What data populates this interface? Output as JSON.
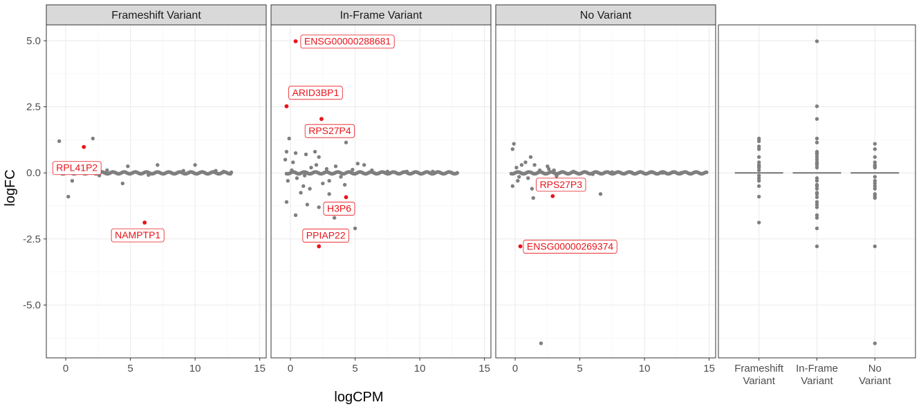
{
  "chart_data": [
    {
      "type": "scatter",
      "panel": "Frameshift Variant",
      "xlabel": "logCPM",
      "ylabel": "logFC",
      "xlim": [
        -1.5,
        15.5
      ],
      "ylim": [
        -7,
        5.6
      ],
      "xticks": [
        "0",
        "5",
        "10",
        "15"
      ],
      "yticks": [
        "5.0",
        "2.5",
        "0.0",
        "-2.5",
        "-5.0"
      ],
      "grid": true,
      "points": [
        [
          -0.5,
          1.2
        ],
        [
          0.2,
          -0.9
        ],
        [
          0.5,
          -0.3
        ],
        [
          -0.2,
          0.25
        ],
        [
          2.1,
          1.3
        ],
        [
          4.8,
          0.25
        ],
        [
          4.4,
          -0.4
        ],
        [
          7.1,
          0.3
        ],
        [
          10,
          0.3
        ],
        [
          11.6,
          0.08
        ],
        [
          12.2,
          0.05
        ],
        [
          12.8,
          0.02
        ],
        [
          3.2,
          0.1
        ],
        [
          6.4,
          -0.08
        ],
        [
          9.1,
          0.08
        ],
        [
          1.2,
          0.12
        ],
        [
          2.6,
          -0.1
        ]
      ],
      "highlighted": [
        {
          "gene": "RPL41P2",
          "logCPM": 1.4,
          "logFC": 0.98
        },
        {
          "gene": "NAMPTP1",
          "logCPM": 6.1,
          "logFC": -1.88
        }
      ]
    },
    {
      "type": "scatter",
      "panel": "In-Frame Variant",
      "xlim": [
        -1.5,
        15.5
      ],
      "ylim": [
        -7,
        5.6
      ],
      "xticks": [
        "0",
        "5",
        "10",
        "15"
      ],
      "grid": true,
      "points": [
        [
          -0.3,
          0.8
        ],
        [
          -0.1,
          1.3
        ],
        [
          0.4,
          0.75
        ],
        [
          1.2,
          0.7
        ],
        [
          1.9,
          0.8
        ],
        [
          2.2,
          0.6
        ],
        [
          -0.4,
          0.5
        ],
        [
          0.2,
          0.4
        ],
        [
          4.3,
          1.15
        ],
        [
          -0.3,
          -1.1
        ],
        [
          0.4,
          -1.6
        ],
        [
          1.3,
          -1.2
        ],
        [
          2.2,
          -1.3
        ],
        [
          3.0,
          -0.8
        ],
        [
          3.4,
          -1.7
        ],
        [
          5.0,
          -2.1
        ],
        [
          5.2,
          0.35
        ],
        [
          5.7,
          0.3
        ],
        [
          1.0,
          -0.5
        ],
        [
          1.5,
          -0.6
        ],
        [
          2.5,
          -0.4
        ],
        [
          3.0,
          -0.3
        ],
        [
          -0.2,
          -0.3
        ],
        [
          0.5,
          -0.2
        ],
        [
          2.0,
          0.3
        ],
        [
          3.5,
          0.25
        ],
        [
          12.9,
          0.0
        ],
        [
          12.5,
          0.0
        ],
        [
          11.0,
          0.05
        ],
        [
          9.0,
          0.05
        ],
        [
          7.5,
          0.05
        ],
        [
          4.2,
          -0.45
        ],
        [
          0.8,
          -0.75
        ],
        [
          1.6,
          0.2
        ],
        [
          2.8,
          0.15
        ],
        [
          3.9,
          -0.15
        ],
        [
          0.1,
          0.1
        ],
        [
          1.1,
          -0.1
        ],
        [
          4.8,
          0.12
        ],
        [
          6.3,
          0.1
        ]
      ],
      "highlighted": [
        {
          "gene": "ENSG00000288681",
          "logCPM": 0.4,
          "logFC": 4.98
        },
        {
          "gene": "ARID3BP1",
          "logCPM": -0.3,
          "logFC": 2.52
        },
        {
          "gene": "RPS27P4",
          "logCPM": 2.4,
          "logFC": 2.04
        },
        {
          "gene": "H3P6",
          "logCPM": 4.3,
          "logFC": -0.92
        },
        {
          "gene": "PPIAP22",
          "logCPM": 2.2,
          "logFC": -2.78
        }
      ]
    },
    {
      "type": "scatter",
      "panel": "No Variant",
      "xlim": [
        -1.5,
        15.5
      ],
      "ylim": [
        -7,
        5.6
      ],
      "xticks": [
        "0",
        "5",
        "10",
        "15"
      ],
      "grid": true,
      "points": [
        [
          -0.1,
          1.1
        ],
        [
          -0.2,
          0.9
        ],
        [
          1.2,
          0.6
        ],
        [
          0.1,
          0.2
        ],
        [
          0.5,
          0.3
        ],
        [
          0.8,
          0.4
        ],
        [
          1.5,
          0.3
        ],
        [
          2.5,
          0.25
        ],
        [
          -0.2,
          -0.5
        ],
        [
          0.2,
          -0.3
        ],
        [
          1.3,
          -0.6
        ],
        [
          2.0,
          -0.4
        ],
        [
          1.4,
          -0.95
        ],
        [
          3.5,
          -0.5
        ],
        [
          6.6,
          -0.8
        ],
        [
          2.0,
          -6.45
        ],
        [
          14.8,
          0.02
        ],
        [
          12.8,
          0.0
        ],
        [
          12.2,
          0.02
        ],
        [
          11.4,
          0.0
        ],
        [
          10.5,
          0.02
        ],
        [
          3.0,
          0.1
        ],
        [
          4.5,
          0.05
        ],
        [
          6.0,
          -0.05
        ],
        [
          7.5,
          0.03
        ],
        [
          9.0,
          0.02
        ],
        [
          0.3,
          -0.15
        ],
        [
          2.6,
          0.15
        ],
        [
          1.0,
          -0.2
        ],
        [
          1.9,
          0.1
        ],
        [
          3.2,
          -0.12
        ]
      ],
      "highlighted": [
        {
          "gene": "RPS27P3",
          "logCPM": 2.9,
          "logFC": -0.88
        },
        {
          "gene": "ENSG00000269374",
          "logCPM": 0.4,
          "logFC": -2.78
        }
      ]
    },
    {
      "type": "boxplot",
      "panel": "",
      "categories": [
        "Frameshift Variant",
        "In-Frame Variant",
        "No Variant"
      ],
      "category_lines": [
        [
          "Frameshift",
          "Variant"
        ],
        [
          "In-Frame",
          "Variant"
        ],
        [
          "No",
          "Variant"
        ]
      ],
      "ylim": [
        -7,
        5.6
      ],
      "grid": true,
      "values": [
        [
          1.3,
          1.2,
          1.0,
          0.9,
          0.6,
          0.4,
          0.3,
          0.25,
          0.2,
          0.1,
          -0.1,
          -0.2,
          -0.3,
          -0.5,
          -0.9,
          -1.88
        ],
        [
          4.98,
          2.52,
          2.04,
          1.3,
          1.15,
          0.8,
          0.75,
          0.7,
          0.6,
          0.5,
          0.4,
          0.35,
          0.3,
          0.2,
          -0.2,
          -0.3,
          -0.45,
          -0.5,
          -0.6,
          -0.75,
          -0.8,
          -0.92,
          -1.1,
          -1.2,
          -1.3,
          -1.6,
          -1.7,
          -2.1,
          -2.78
        ],
        [
          1.1,
          0.9,
          0.6,
          0.4,
          0.3,
          0.25,
          0.2,
          -0.15,
          -0.3,
          -0.4,
          -0.5,
          -0.6,
          -0.8,
          -0.88,
          -0.95,
          -2.78,
          -6.45
        ]
      ]
    }
  ],
  "colors": {
    "point": "#7f7f7f",
    "highlight": "#e8141a",
    "strip_fill": "#d9d9d9",
    "grid_major": "#ebebeb",
    "grid_minor": "#f3f3f3",
    "panel_border": "#333333"
  }
}
